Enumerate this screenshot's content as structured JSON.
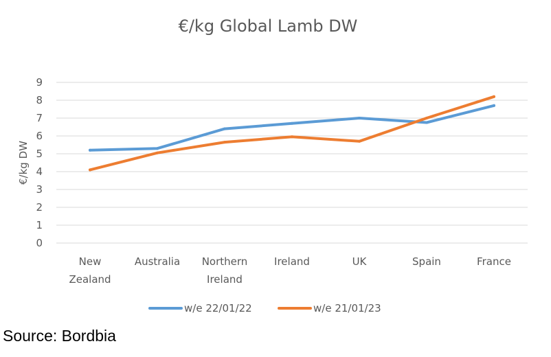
{
  "chart_data": {
    "type": "line",
    "title": "€/kg Global Lamb DW",
    "ylabel": "€/kg DW",
    "xlabel": "",
    "categories": [
      "New Zealand",
      "Australia",
      "Northern Ireland",
      "Ireland",
      "UK",
      "Spain",
      "France"
    ],
    "category_lines": [
      [
        "New",
        "Zealand"
      ],
      [
        "Australia"
      ],
      [
        "Northern",
        "Ireland"
      ],
      [
        "Ireland"
      ],
      [
        "UK"
      ],
      [
        "Spain"
      ],
      [
        "France"
      ]
    ],
    "ylim": [
      0,
      9
    ],
    "yticks": [
      0,
      1,
      2,
      3,
      4,
      5,
      6,
      7,
      8,
      9
    ],
    "grid": true,
    "legend_position": "bottom",
    "series": [
      {
        "name": "w/e 22/01/22",
        "color": "#5b9bd5",
        "values": [
          5.2,
          5.3,
          6.4,
          6.7,
          7.0,
          6.75,
          7.7
        ]
      },
      {
        "name": "w/e 21/01/23",
        "color": "#ed7d31",
        "values": [
          4.1,
          5.05,
          5.65,
          5.95,
          5.7,
          7.0,
          8.2
        ]
      }
    ]
  },
  "footer": {
    "source": "Source: Bordbia"
  }
}
